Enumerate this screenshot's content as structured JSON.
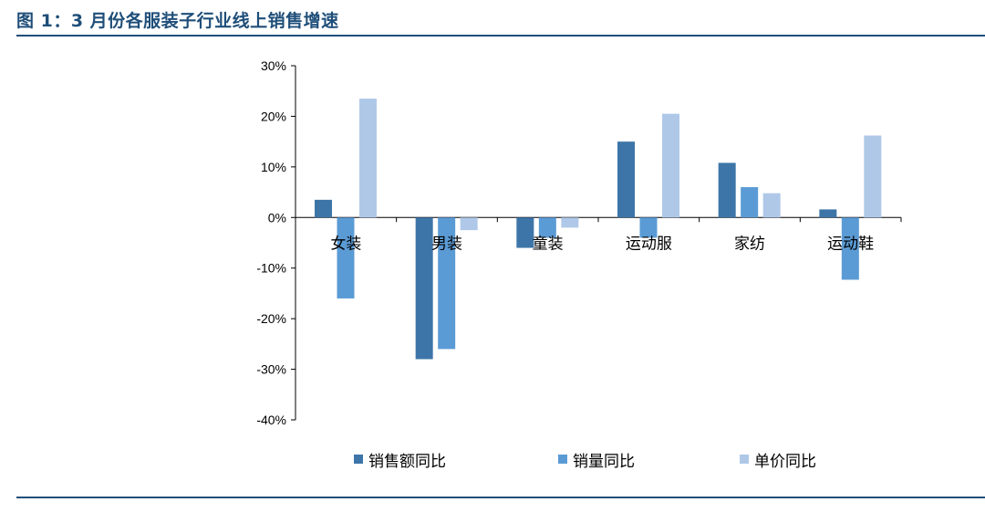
{
  "figure": {
    "title": "图 1：3 月份各服装子行业线上销售增速"
  },
  "colors": {
    "accent": "#1f4e79",
    "series": [
      "#3d75a8",
      "#5b9bd5",
      "#afc8e8"
    ]
  },
  "chart_data": {
    "type": "bar",
    "categories": [
      "女装",
      "男装",
      "童装",
      "运动服",
      "家纺",
      "运动鞋"
    ],
    "series": [
      {
        "name": "销售额同比",
        "values": [
          3.5,
          -28,
          -6,
          15,
          10.8,
          1.6
        ]
      },
      {
        "name": "销量同比",
        "values": [
          -16,
          -26,
          -4,
          -4,
          6,
          -12.3
        ]
      },
      {
        "name": "单价同比",
        "values": [
          23.5,
          -2.5,
          -2,
          20.5,
          4.8,
          16.2
        ]
      }
    ],
    "yticks": [
      "30%",
      "20%",
      "10%",
      "0%",
      "-10%",
      "-20%",
      "-30%",
      "-40%"
    ],
    "ylim": [
      -40,
      30
    ],
    "yunit": "%",
    "legend_position": "bottom"
  }
}
